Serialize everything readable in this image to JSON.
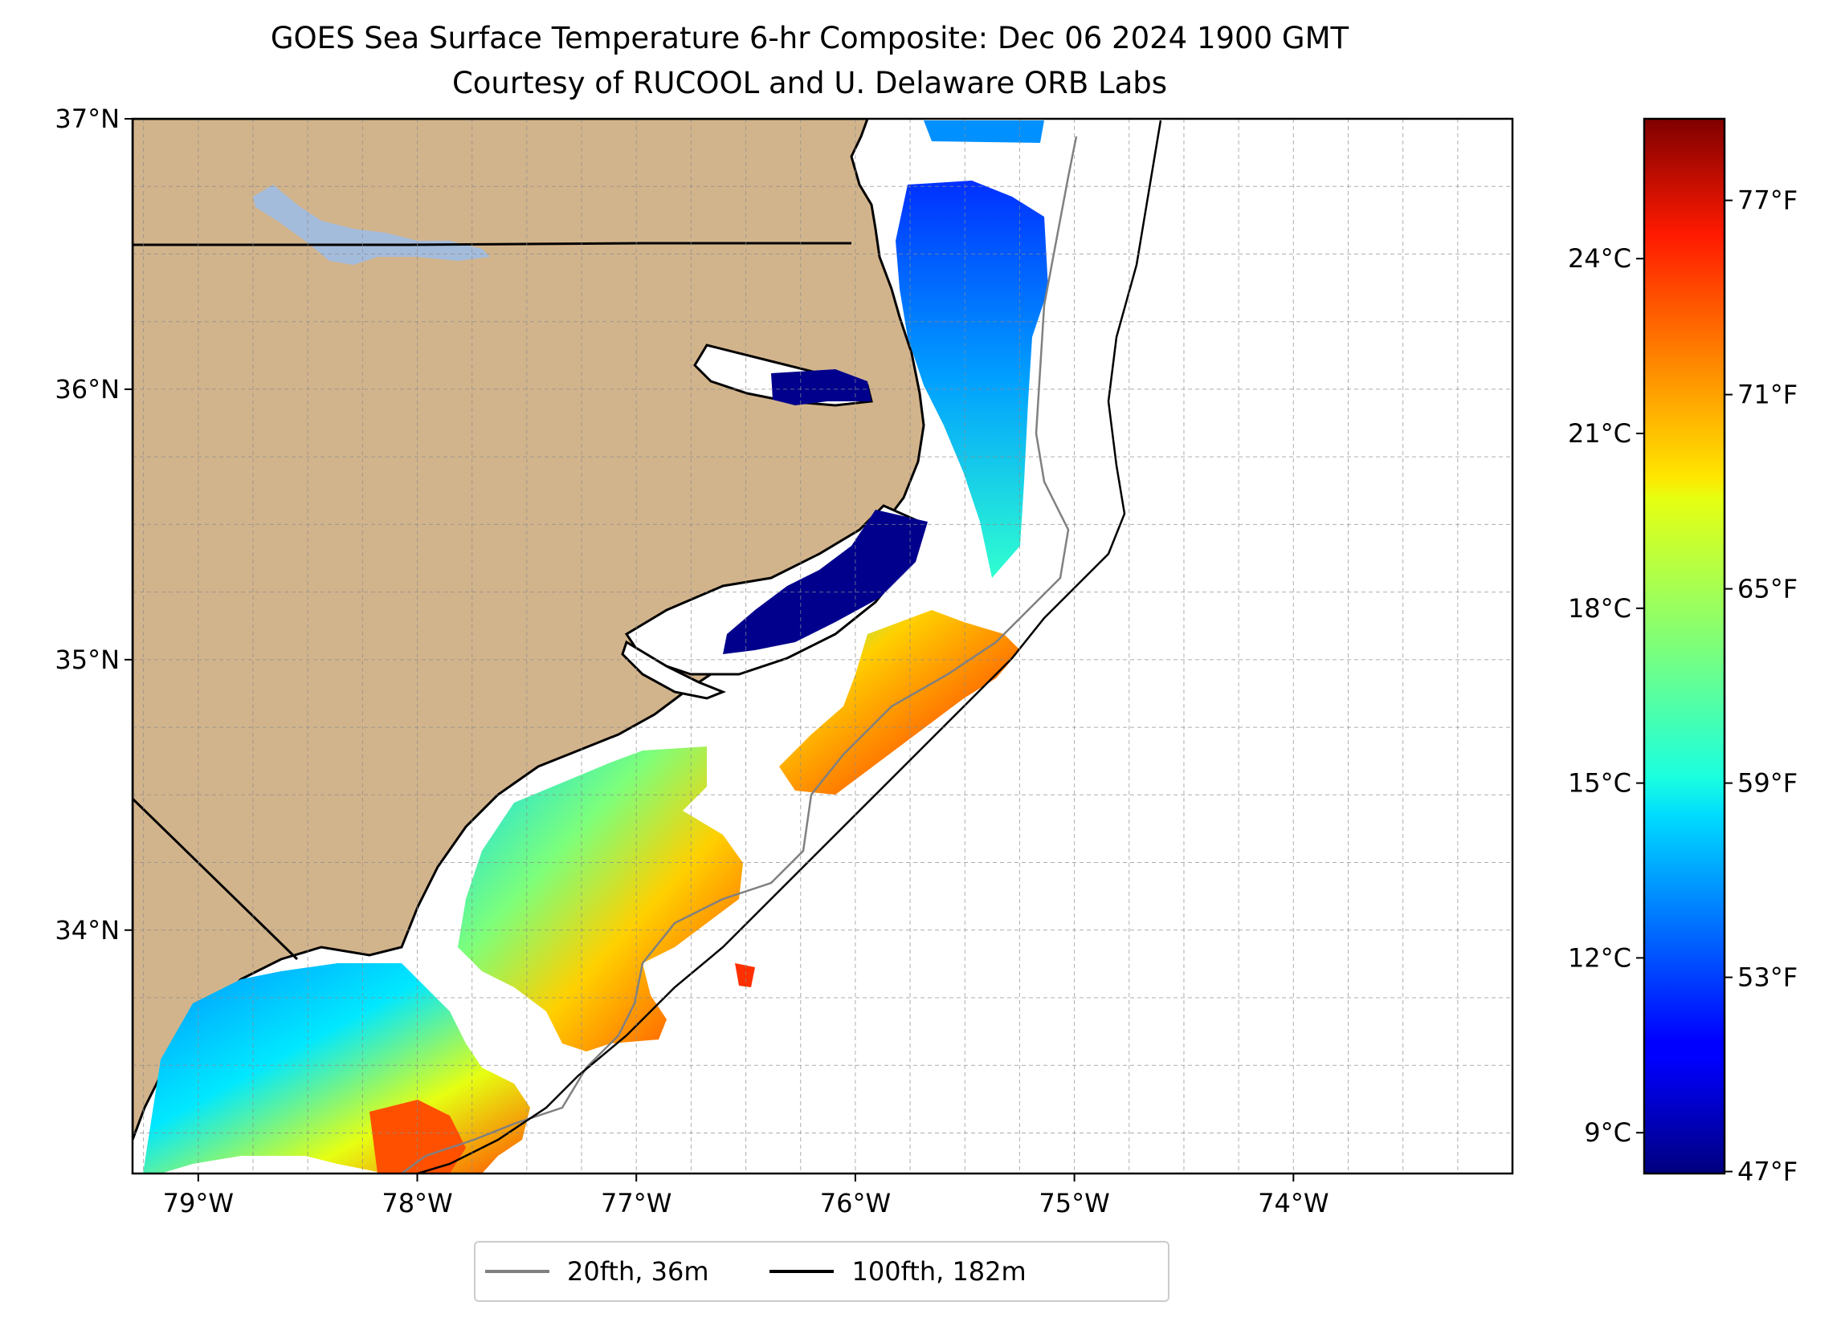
{
  "title": {
    "line1": "GOES Sea Surface Temperature 6-hr Composite: Dec 06 2024 1900 GMT",
    "line2": "Courtesy of RUCOOL and U. Delaware ORB Labs"
  },
  "map": {
    "lon_range": [
      -79.3,
      -73.0
    ],
    "lat_range": [
      33.1,
      37.0
    ],
    "lon_ticks": [
      {
        "value": -79,
        "label": "79°W"
      },
      {
        "value": -78,
        "label": "78°W"
      },
      {
        "value": -77,
        "label": "77°W"
      },
      {
        "value": -76,
        "label": "76°W"
      },
      {
        "value": -75,
        "label": "75°W"
      },
      {
        "value": -74,
        "label": "74°W"
      }
    ],
    "lat_ticks": [
      {
        "value": 34,
        "label": "34°N"
      },
      {
        "value": 35,
        "label": "35°N"
      },
      {
        "value": 36,
        "label": "36°N"
      },
      {
        "value": 37,
        "label": "37°N"
      }
    ],
    "colors": {
      "land": "#d2b48c",
      "lake": "#a4bcdc",
      "isobath_20fth": "#808080",
      "isobath_100fth": "#000000"
    }
  },
  "colorbar": {
    "colormap": "jet",
    "range_c": [
      8.3,
      26.4
    ],
    "celsius_ticks": [
      {
        "value": 9,
        "label": "9°C"
      },
      {
        "value": 12,
        "label": "12°C"
      },
      {
        "value": 15,
        "label": "15°C"
      },
      {
        "value": 18,
        "label": "18°C"
      },
      {
        "value": 21,
        "label": "21°C"
      },
      {
        "value": 24,
        "label": "24°C"
      }
    ],
    "fahrenheit_ticks": [
      {
        "value": 47,
        "label": "47°F"
      },
      {
        "value": 53,
        "label": "53°F"
      },
      {
        "value": 59,
        "label": "59°F"
      },
      {
        "value": 65,
        "label": "65°F"
      },
      {
        "value": 71,
        "label": "71°F"
      },
      {
        "value": 77,
        "label": "77°F"
      }
    ]
  },
  "legend": {
    "items": [
      {
        "label": "20fth, 36m",
        "color": "#808080"
      },
      {
        "label": "100fth, 182m",
        "color": "#000000"
      }
    ]
  }
}
